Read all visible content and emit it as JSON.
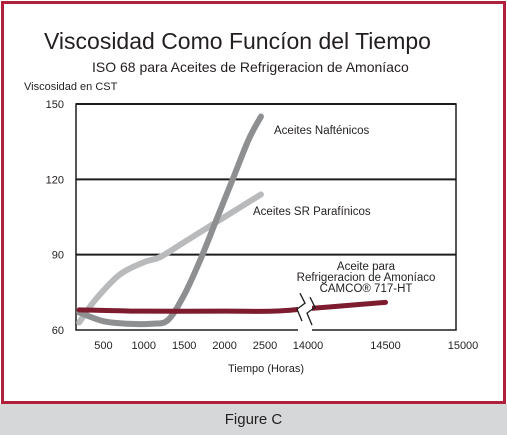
{
  "caption": "Figure C",
  "chart_data": {
    "type": "line",
    "title": "Viscosidad Como Funcíon del Tiempo",
    "subtitle": "ISO 68 para Aceites de Refrigeracion de Amoníaco",
    "ylabel": "Viscosidad en CST",
    "xlabel": "Tiempo (Horas)",
    "ylim": [
      60,
      150
    ],
    "yticks": [
      60,
      90,
      120,
      150
    ],
    "xtick_labels": [
      "500",
      "1000",
      "1500",
      "2000",
      "2500",
      "14000",
      "14500",
      "15000"
    ],
    "axis_break": "between 2500 and 14000",
    "grid": "horizontal",
    "colors": {
      "naftenicos": "#8e8f91",
      "parafinicos": "#b9babc",
      "camco": "#7d1c2e",
      "frame": "#b1203a"
    },
    "series": [
      {
        "name": "Aceites Nafténicos",
        "x": [
          200,
          500,
          800,
          1100,
          1300,
          1500,
          1700,
          1900,
          2100,
          2300,
          2450
        ],
        "y": [
          67,
          63.5,
          62.5,
          62.5,
          64,
          74,
          88,
          104,
          120,
          136,
          145
        ]
      },
      {
        "name": "Aceites SR Parafínicos",
        "x": [
          200,
          400,
          700,
          1000,
          1200,
          1500,
          1800,
          2100,
          2300,
          2450
        ],
        "y": [
          63,
          72,
          82,
          87,
          89,
          95,
          101,
          107,
          111,
          114
        ]
      },
      {
        "name_lines": [
          "Aceite para",
          "Refrigeracion de Amoníaco",
          "CAMCO® 717-HT"
        ],
        "x": [
          200,
          1000,
          2000,
          2600,
          14000,
          14300,
          14500
        ],
        "y": [
          68,
          67.5,
          67.5,
          67.5,
          68.5,
          70,
          71
        ]
      }
    ]
  }
}
